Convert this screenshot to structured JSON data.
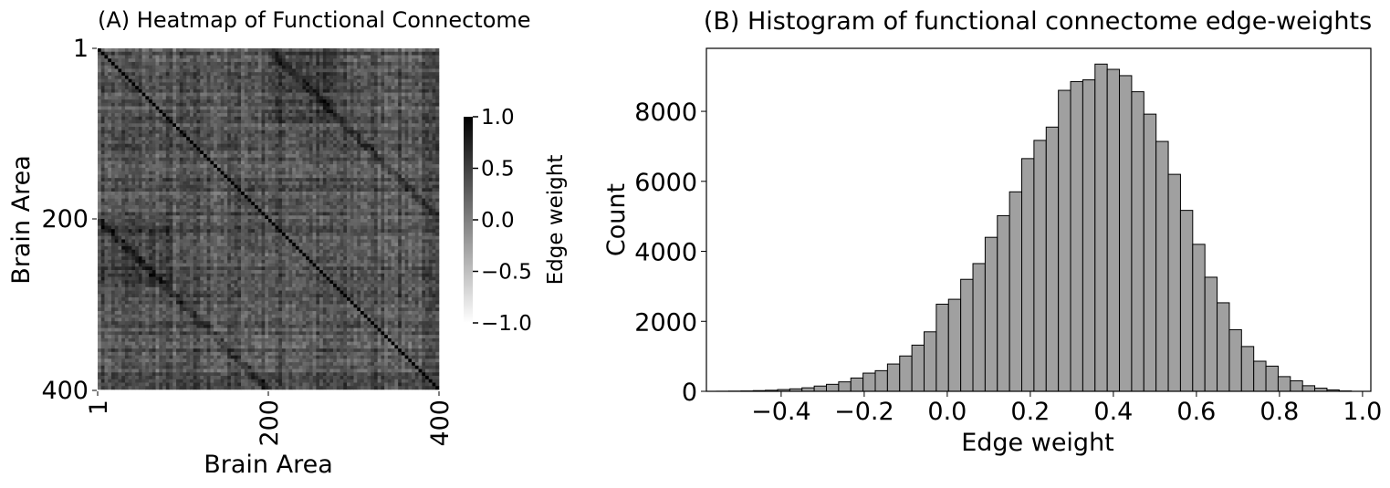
{
  "chart_data": [
    {
      "type": "heatmap",
      "title": "(A) Heatmap of Functional Connectome",
      "xlabel": "Brain Area",
      "ylabel": "Brain Area",
      "x_ticks": [
        "1",
        "200",
        "400"
      ],
      "y_ticks": [
        "1",
        "200",
        "400"
      ],
      "n": 400,
      "colormap": "grayscale (white = -1.0, black = 1.0)",
      "colorbar": {
        "label": "Edge weight",
        "range": [
          -1.0,
          1.0
        ],
        "ticks": [
          "1.0",
          "0.5",
          "0.0",
          "−0.5",
          "−1.0"
        ]
      }
    },
    {
      "type": "bar",
      "subtype": "histogram",
      "title": "(B) Histogram of functional connectome edge-weights",
      "xlabel": "Edge weight",
      "ylabel": "Count",
      "xlim": [
        -0.58,
        1.02
      ],
      "ylim": [
        0,
        9800
      ],
      "x_ticks": [
        -0.4,
        -0.2,
        0.0,
        0.2,
        0.4,
        0.6,
        0.8,
        1.0
      ],
      "x_tick_labels": [
        "−0.4",
        "−0.2",
        "0.0",
        "0.2",
        "0.4",
        "0.6",
        "0.8",
        "1.0"
      ],
      "y_ticks": [
        0,
        2000,
        4000,
        6000,
        8000
      ],
      "y_tick_labels": [
        "0",
        "2000",
        "4000",
        "6000",
        "8000"
      ],
      "bar_color": "#a0a0a0",
      "bin_width": 0.0294,
      "bins": [
        {
          "x0": -0.5556,
          "count": 2
        },
        {
          "x0": -0.5262,
          "count": 5
        },
        {
          "x0": -0.4968,
          "count": 10
        },
        {
          "x0": -0.4674,
          "count": 20
        },
        {
          "x0": -0.438,
          "count": 30
        },
        {
          "x0": -0.4086,
          "count": 50
        },
        {
          "x0": -0.3792,
          "count": 70
        },
        {
          "x0": -0.3498,
          "count": 100
        },
        {
          "x0": -0.3204,
          "count": 150
        },
        {
          "x0": -0.291,
          "count": 200
        },
        {
          "x0": -0.2616,
          "count": 270
        },
        {
          "x0": -0.2322,
          "count": 380
        },
        {
          "x0": -0.2028,
          "count": 520
        },
        {
          "x0": -0.1734,
          "count": 590
        },
        {
          "x0": -0.144,
          "count": 780
        },
        {
          "x0": -0.1146,
          "count": 1010
        },
        {
          "x0": -0.0852,
          "count": 1320
        },
        {
          "x0": -0.0558,
          "count": 1700
        },
        {
          "x0": -0.0264,
          "count": 2490
        },
        {
          "x0": 0.003,
          "count": 2630
        },
        {
          "x0": 0.0324,
          "count": 3200
        },
        {
          "x0": 0.0618,
          "count": 3650
        },
        {
          "x0": 0.0912,
          "count": 4400
        },
        {
          "x0": 0.1206,
          "count": 5020
        },
        {
          "x0": 0.15,
          "count": 5700
        },
        {
          "x0": 0.1794,
          "count": 6650
        },
        {
          "x0": 0.2088,
          "count": 7170
        },
        {
          "x0": 0.2382,
          "count": 7550
        },
        {
          "x0": 0.2676,
          "count": 8600
        },
        {
          "x0": 0.297,
          "count": 8850
        },
        {
          "x0": 0.3264,
          "count": 8900
        },
        {
          "x0": 0.3558,
          "count": 9350
        },
        {
          "x0": 0.3852,
          "count": 9200
        },
        {
          "x0": 0.4146,
          "count": 9020
        },
        {
          "x0": 0.444,
          "count": 8560
        },
        {
          "x0": 0.4734,
          "count": 7920
        },
        {
          "x0": 0.5028,
          "count": 7140
        },
        {
          "x0": 0.5322,
          "count": 6200
        },
        {
          "x0": 0.5616,
          "count": 5170
        },
        {
          "x0": 0.591,
          "count": 4200
        },
        {
          "x0": 0.6204,
          "count": 3260
        },
        {
          "x0": 0.6498,
          "count": 2530
        },
        {
          "x0": 0.6792,
          "count": 1760
        },
        {
          "x0": 0.7086,
          "count": 1280
        },
        {
          "x0": 0.738,
          "count": 860
        },
        {
          "x0": 0.7674,
          "count": 720
        },
        {
          "x0": 0.7968,
          "count": 420
        },
        {
          "x0": 0.8262,
          "count": 300
        },
        {
          "x0": 0.8556,
          "count": 160
        },
        {
          "x0": 0.885,
          "count": 90
        },
        {
          "x0": 0.9144,
          "count": 40
        },
        {
          "x0": 0.9438,
          "count": 10
        }
      ]
    }
  ]
}
